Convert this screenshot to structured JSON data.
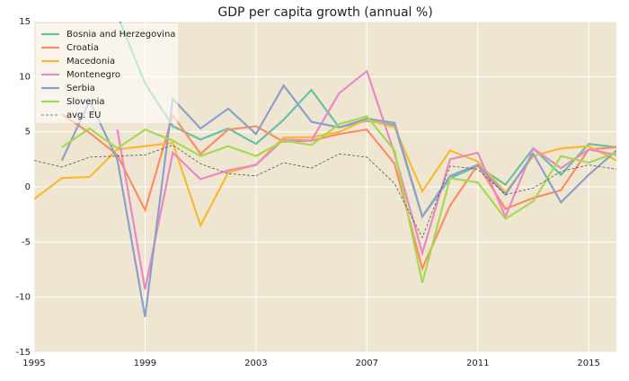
{
  "chart_data": {
    "type": "line",
    "title": "GDP per capita growth (annual %)",
    "x": [
      1995,
      1996,
      1997,
      1998,
      1999,
      2000,
      2001,
      2002,
      2003,
      2004,
      2005,
      2006,
      2007,
      2008,
      2009,
      2010,
      2011,
      2012,
      2013,
      2014,
      2015,
      2016
    ],
    "xlim": [
      1995,
      2016
    ],
    "xticks": [
      1995,
      1999,
      2003,
      2007,
      2011,
      2015
    ],
    "ylim": [
      -15,
      15
    ],
    "yticks": [
      -15,
      -10,
      -5,
      0,
      5,
      10,
      15
    ],
    "grid": true,
    "legend": "upper left",
    "series": [
      {
        "name": "Bosnia and Herzegovina",
        "color": "#66c2a5",
        "values": [
          null,
          null,
          null,
          15.6,
          9.4,
          5.5,
          4.3,
          5.3,
          3.9,
          6.1,
          8.8,
          5.4,
          6.0,
          5.6,
          -2.7,
          0.8,
          1.9,
          0.2,
          3.5,
          1.1,
          3.9,
          3.6
        ]
      },
      {
        "name": "Croatia",
        "color": "#fc8d62",
        "values": [
          null,
          6.6,
          4.9,
          2.9,
          -2.1,
          6.5,
          3.0,
          5.2,
          5.5,
          4.1,
          4.2,
          4.8,
          5.2,
          2.1,
          -7.4,
          -1.7,
          2.0,
          -2.0,
          -1.0,
          -0.3,
          3.4,
          3.6
        ]
      },
      {
        "name": "Macedonia",
        "color": "#f9b932",
        "values": [
          -1.1,
          0.8,
          0.9,
          3.4,
          3.7,
          4.0,
          -3.5,
          1.3,
          2.0,
          4.5,
          4.5,
          5.0,
          6.1,
          5.4,
          -0.4,
          3.3,
          2.3,
          -0.5,
          2.8,
          3.5,
          3.7,
          2.4
        ]
      },
      {
        "name": "Montenegro",
        "color": "#e78ac3",
        "values": [
          null,
          null,
          null,
          5.2,
          -9.3,
          3.1,
          0.7,
          1.5,
          2.0,
          4.3,
          4.2,
          8.5,
          10.5,
          3.0,
          -6.0,
          2.5,
          3.1,
          -2.7,
          3.5,
          1.7,
          3.4,
          2.9
        ]
      },
      {
        "name": "Serbia",
        "color": "#8da0cb",
        "values": [
          null,
          2.4,
          7.8,
          2.5,
          -11.8,
          8.0,
          5.3,
          7.1,
          4.8,
          9.2,
          5.9,
          5.4,
          6.2,
          5.8,
          -2.7,
          1.0,
          2.0,
          -0.7,
          3.0,
          -1.4,
          1.1,
          3.3
        ]
      },
      {
        "name": "Slovenia",
        "color": "#a6d854",
        "values": [
          null,
          3.6,
          5.3,
          3.5,
          5.2,
          4.2,
          2.8,
          3.7,
          2.8,
          4.2,
          3.8,
          5.7,
          6.4,
          3.3,
          -8.7,
          0.8,
          0.4,
          -2.9,
          -1.3,
          2.8,
          2.2,
          3.1
        ]
      },
      {
        "name": "avg. EU",
        "color": "#555555",
        "linestyle": "dashed",
        "values": [
          2.4,
          1.8,
          2.7,
          2.8,
          2.9,
          3.8,
          2.1,
          1.2,
          1.0,
          2.2,
          1.7,
          3.0,
          2.7,
          0.3,
          -4.6,
          1.9,
          1.6,
          -0.7,
          -0.1,
          1.4,
          2.0,
          1.6
        ]
      }
    ]
  }
}
